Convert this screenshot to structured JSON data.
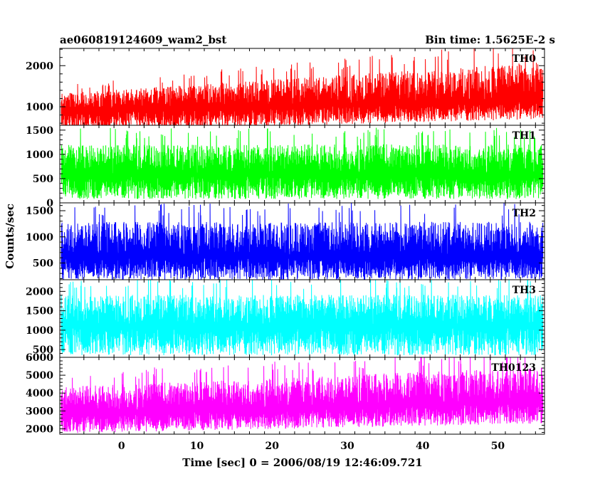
{
  "header": {
    "left_title": "ae060819124609_wam2_bst",
    "right_title": "Bin time: 1.5625E-2 s"
  },
  "axes": {
    "xlabel": "Time [sec] 0 = 2006/08/19 12:46:09.721",
    "ylabel": "Counts/sec"
  },
  "chart_data": {
    "type": "line",
    "x_range": [
      -8.2,
      56.2
    ],
    "x_data_range": [
      -8.0,
      56.0
    ],
    "x_ticks": [
      0,
      10,
      20,
      30,
      40,
      50
    ],
    "bin_time_s": 0.015625,
    "panels": [
      {
        "label": "TH0",
        "color": "#ff0000",
        "ylim": [
          550,
          2420
        ],
        "yticks": [
          1000,
          2000
        ],
        "trend_start": [
          900,
          400,
          1400
        ],
        "trend_end": [
          1200,
          700,
          2250
        ]
      },
      {
        "label": "TH1",
        "color": "#00ff00",
        "ylim": [
          0,
          1600
        ],
        "yticks": [
          0,
          500,
          1000,
          1500
        ],
        "trend_start": [
          600,
          80,
          1300
        ],
        "trend_end": [
          620,
          80,
          1320
        ]
      },
      {
        "label": "TH2",
        "color": "#0000ff",
        "ylim": [
          180,
          1650
        ],
        "yticks": [
          500,
          1000,
          1500
        ],
        "trend_start": [
          650,
          180,
          1400
        ],
        "trend_end": [
          650,
          180,
          1400
        ]
      },
      {
        "label": "TH3",
        "color": "#00ffff",
        "ylim": [
          300,
          2300
        ],
        "yticks": [
          500,
          1000,
          1500,
          2000
        ],
        "trend_start": [
          1150,
          350,
          2050
        ],
        "trend_end": [
          1150,
          350,
          2050
        ]
      },
      {
        "label": "TH0123",
        "color": "#ff00ff",
        "ylim": [
          1700,
          6000
        ],
        "yticks": [
          2000,
          3000,
          4000,
          5000,
          6000
        ],
        "trend_start": [
          2900,
          1750,
          4600
        ],
        "trend_end": [
          3600,
          2300,
          5800
        ]
      }
    ]
  }
}
